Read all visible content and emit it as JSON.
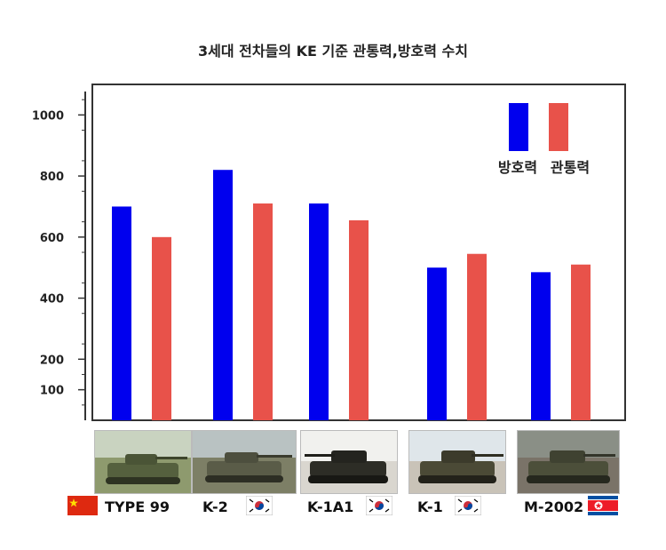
{
  "chart_data": {
    "type": "bar",
    "title": "3세대 전차들의 KE 기준 관통력,방호력 수치",
    "categories": [
      "TYPE 99",
      "K-2",
      "K-1A1",
      "K-1",
      "M-2002"
    ],
    "series": [
      {
        "name": "방호력",
        "color": "#0000ee",
        "values": [
          700,
          820,
          710,
          500,
          485
        ]
      },
      {
        "name": "관통력",
        "color": "#e8524a",
        "values": [
          600,
          710,
          655,
          545,
          510
        ]
      }
    ],
    "y_ticks": [
      "1000",
      "800",
      "600",
      "400",
      "200",
      "100"
    ],
    "y_tick_values": [
      1000,
      800,
      600,
      400,
      200,
      100
    ],
    "ylim": [
      0,
      1100
    ],
    "legend_position": "top-right",
    "grid": false
  },
  "flags": [
    "china-flag-icon",
    "south-korea-flag-icon",
    "south-korea-flag-icon",
    "south-korea-flag-icon",
    "north-korea-flag-icon"
  ]
}
